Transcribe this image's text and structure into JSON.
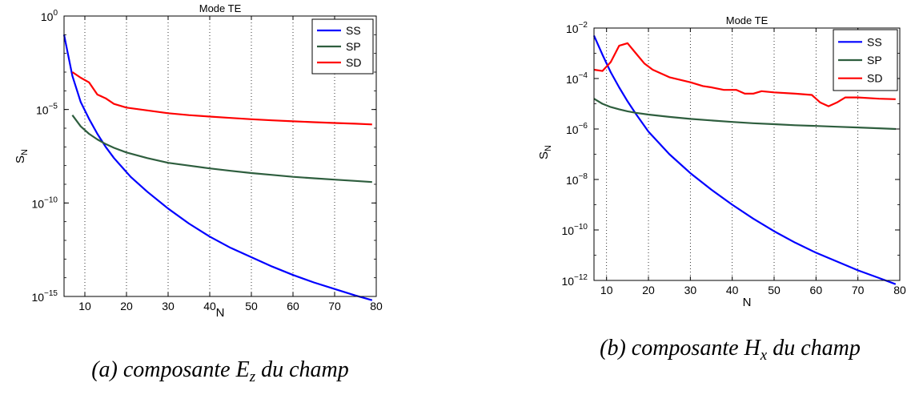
{
  "figures": [
    {
      "caption": {
        "prefix": "(a) composante ",
        "symbol": "E",
        "subscript": "z",
        "suffix": " du champ"
      }
    },
    {
      "caption": {
        "prefix": "(b) composante ",
        "symbol": "H",
        "subscript": "x",
        "suffix": " du champ"
      }
    }
  ],
  "chart_data": [
    {
      "type": "line",
      "title": "Mode TE",
      "xlabel": "N",
      "ylabel": "S",
      "ylabel_subscript": "N",
      "yscale": "log",
      "xlim": [
        5,
        80
      ],
      "ylim_exponent": [
        -15,
        0
      ],
      "x_ticks": [
        "10",
        "20",
        "30",
        "40",
        "50",
        "60",
        "70",
        "80"
      ],
      "y_ticks": [
        {
          "base": "10",
          "exp": "0",
          "value_exp": 0
        },
        {
          "base": "10",
          "exp": "−5",
          "value_exp": -5
        },
        {
          "base": "10",
          "exp": "−10",
          "value_exp": -10
        },
        {
          "base": "10",
          "exp": "−15",
          "value_exp": -15
        }
      ],
      "grid": "x-dotted",
      "legend": "top-right",
      "series": [
        {
          "name": "SS",
          "color": "#0000ff",
          "x": [
            5,
            7,
            9,
            11,
            13,
            15,
            17,
            19,
            21,
            25,
            30,
            35,
            40,
            45,
            50,
            55,
            60,
            65,
            70,
            75,
            79
          ],
          "y_exp": [
            -1.0,
            -3.2,
            -4.6,
            -5.5,
            -6.3,
            -7.0,
            -7.6,
            -8.1,
            -8.6,
            -9.4,
            -10.3,
            -11.1,
            -11.8,
            -12.4,
            -12.9,
            -13.4,
            -13.85,
            -14.25,
            -14.6,
            -14.95,
            -15.2
          ]
        },
        {
          "name": "SP",
          "color": "#2e5e3e",
          "x": [
            7,
            9,
            11,
            13,
            15,
            17,
            20,
            25,
            30,
            35,
            40,
            45,
            50,
            55,
            60,
            65,
            70,
            75,
            79
          ],
          "y_exp": [
            -5.3,
            -5.9,
            -6.3,
            -6.6,
            -6.85,
            -7.05,
            -7.3,
            -7.6,
            -7.85,
            -8.0,
            -8.15,
            -8.28,
            -8.4,
            -8.5,
            -8.6,
            -8.68,
            -8.75,
            -8.82,
            -8.88
          ]
        },
        {
          "name": "SD",
          "color": "#ff0000",
          "x": [
            7,
            9,
            11,
            13,
            15,
            17,
            20,
            25,
            30,
            35,
            40,
            45,
            50,
            55,
            60,
            65,
            70,
            75,
            79
          ],
          "y_exp": [
            -3.0,
            -3.3,
            -3.55,
            -4.2,
            -4.4,
            -4.7,
            -4.9,
            -5.05,
            -5.2,
            -5.3,
            -5.38,
            -5.45,
            -5.52,
            -5.58,
            -5.63,
            -5.68,
            -5.72,
            -5.76,
            -5.8
          ]
        }
      ]
    },
    {
      "type": "line",
      "title": "Mode TE",
      "xlabel": "N",
      "ylabel": "S",
      "ylabel_subscript": "N",
      "yscale": "log",
      "xlim": [
        7,
        80
      ],
      "ylim_exponent": [
        -12,
        -2
      ],
      "x_ticks": [
        "10",
        "20",
        "30",
        "40",
        "50",
        "60",
        "70",
        "80"
      ],
      "y_ticks": [
        {
          "base": "10",
          "exp": "−2",
          "value_exp": -2
        },
        {
          "base": "10",
          "exp": "−4",
          "value_exp": -4
        },
        {
          "base": "10",
          "exp": "−6",
          "value_exp": -6
        },
        {
          "base": "10",
          "exp": "−8",
          "value_exp": -8
        },
        {
          "base": "10",
          "exp": "−10",
          "value_exp": -10
        },
        {
          "base": "10",
          "exp": "−12",
          "value_exp": -12
        }
      ],
      "grid": "x-dotted",
      "legend": "top-right",
      "series": [
        {
          "name": "SS",
          "color": "#0000ff",
          "x": [
            7,
            9,
            11,
            13,
            15,
            17,
            20,
            25,
            30,
            35,
            40,
            45,
            50,
            55,
            60,
            65,
            70,
            75,
            79
          ],
          "y_exp": [
            -2.3,
            -3.05,
            -3.75,
            -4.35,
            -4.9,
            -5.4,
            -6.1,
            -7.0,
            -7.75,
            -8.4,
            -9.0,
            -9.55,
            -10.05,
            -10.5,
            -10.9,
            -11.25,
            -11.6,
            -11.9,
            -12.15
          ]
        },
        {
          "name": "SP",
          "color": "#2e5e3e",
          "x": [
            7,
            9,
            11,
            13,
            15,
            17,
            20,
            25,
            30,
            35,
            40,
            45,
            50,
            55,
            60,
            65,
            70,
            75,
            79
          ],
          "y_exp": [
            -4.8,
            -5.0,
            -5.13,
            -5.22,
            -5.3,
            -5.36,
            -5.43,
            -5.52,
            -5.6,
            -5.66,
            -5.72,
            -5.77,
            -5.81,
            -5.85,
            -5.88,
            -5.91,
            -5.94,
            -5.97,
            -6.0
          ]
        },
        {
          "name": "SD",
          "color": "#ff0000",
          "x": [
            7,
            9,
            11,
            13,
            15,
            17,
            19,
            21,
            25,
            30,
            33,
            35,
            38,
            41,
            43,
            45,
            47,
            50,
            55,
            59,
            61,
            63,
            65,
            67,
            70,
            75,
            79
          ],
          "y_exp": [
            -3.65,
            -3.7,
            -3.35,
            -2.7,
            -2.6,
            -3.0,
            -3.4,
            -3.65,
            -3.95,
            -4.15,
            -4.3,
            -4.35,
            -4.45,
            -4.45,
            -4.6,
            -4.6,
            -4.5,
            -4.55,
            -4.6,
            -4.65,
            -4.95,
            -5.1,
            -4.95,
            -4.75,
            -4.75,
            -4.8,
            -4.82
          ]
        }
      ]
    }
  ]
}
